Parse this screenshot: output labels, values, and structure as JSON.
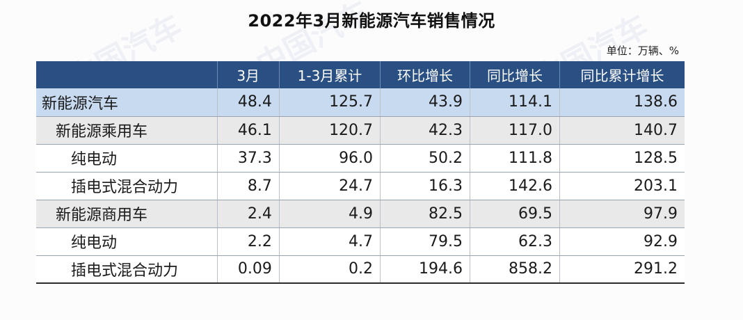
{
  "title": "2022年3月新能源汽车销售情况",
  "unit": "单位：万辆、%",
  "columns": [
    "",
    "3月",
    "1-3月累计",
    "环比增长",
    "同比增长",
    "同比累计增长"
  ],
  "rows": [
    {
      "label": "新能源汽车",
      "level": 0,
      "values": [
        "48.4",
        "125.7",
        "43.9",
        "114.1",
        "138.6"
      ]
    },
    {
      "label": "新能源乘用车",
      "level": 1,
      "values": [
        "46.1",
        "120.7",
        "42.3",
        "117.0",
        "140.7"
      ]
    },
    {
      "label": "纯电动",
      "level": 2,
      "values": [
        "37.3",
        "96.0",
        "50.2",
        "111.8",
        "128.5"
      ]
    },
    {
      "label": "插电式混合动力",
      "level": 2,
      "values": [
        "8.7",
        "24.7",
        "16.3",
        "142.6",
        "203.1"
      ]
    },
    {
      "label": "新能源商用车",
      "level": 1,
      "values": [
        "2.4",
        "4.9",
        "82.5",
        "69.5",
        "97.9"
      ]
    },
    {
      "label": "纯电动",
      "level": 2,
      "values": [
        "2.2",
        "4.7",
        "79.5",
        "62.3",
        "92.9"
      ]
    },
    {
      "label": "插电式混合动力",
      "level": 2,
      "values": [
        "0.09",
        "0.2",
        "194.6",
        "858.2",
        "291.2"
      ]
    }
  ],
  "watermark": "中国汽车",
  "colors": {
    "header_bg": "#2a4f82",
    "total_row_bg": "#c7daf0",
    "subtotal_row_bg": "#e9e9ea"
  }
}
